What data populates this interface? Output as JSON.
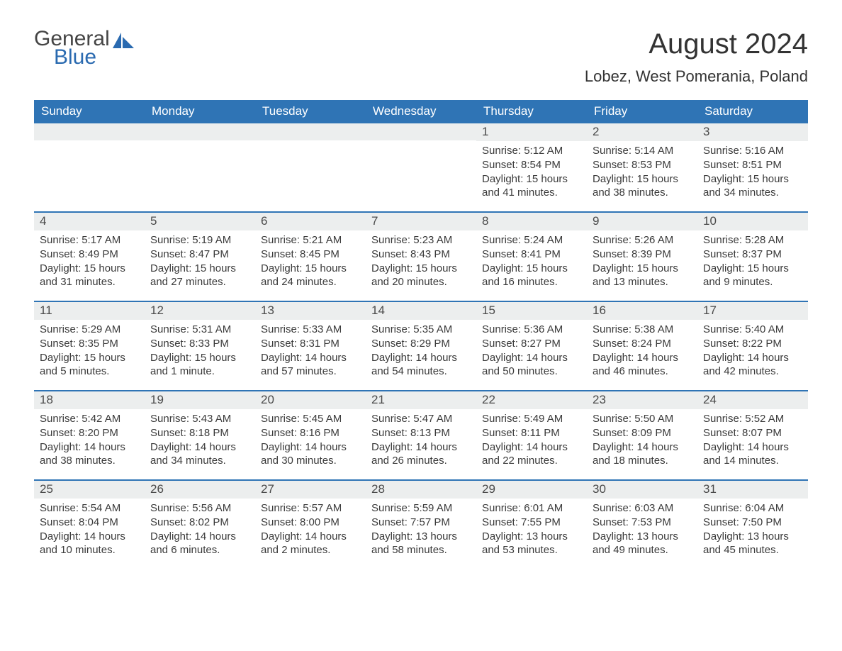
{
  "brand": {
    "word1": "General",
    "word2": "Blue"
  },
  "title": "August 2024",
  "location": "Lobez, West Pomerania, Poland",
  "colors": {
    "header_bg": "#2f74b5",
    "header_text": "#ffffff",
    "daynum_bg": "#eceeee",
    "text": "#3a3a3a",
    "rule": "#2f74b5",
    "logo_blue": "#2a6ab0",
    "page_bg": "#ffffff"
  },
  "layout": {
    "columns": 7,
    "font_family": "Arial",
    "title_fontsize": 40,
    "location_fontsize": 22,
    "dayhead_fontsize": 17,
    "cell_fontsize": 15
  },
  "day_headers": [
    "Sunday",
    "Monday",
    "Tuesday",
    "Wednesday",
    "Thursday",
    "Friday",
    "Saturday"
  ],
  "weeks": [
    [
      {
        "n": "",
        "sr": "",
        "ss": "",
        "dl": ""
      },
      {
        "n": "",
        "sr": "",
        "ss": "",
        "dl": ""
      },
      {
        "n": "",
        "sr": "",
        "ss": "",
        "dl": ""
      },
      {
        "n": "",
        "sr": "",
        "ss": "",
        "dl": ""
      },
      {
        "n": "1",
        "sr": "5:12 AM",
        "ss": "8:54 PM",
        "dl": "15 hours and 41 minutes."
      },
      {
        "n": "2",
        "sr": "5:14 AM",
        "ss": "8:53 PM",
        "dl": "15 hours and 38 minutes."
      },
      {
        "n": "3",
        "sr": "5:16 AM",
        "ss": "8:51 PM",
        "dl": "15 hours and 34 minutes."
      }
    ],
    [
      {
        "n": "4",
        "sr": "5:17 AM",
        "ss": "8:49 PM",
        "dl": "15 hours and 31 minutes."
      },
      {
        "n": "5",
        "sr": "5:19 AM",
        "ss": "8:47 PM",
        "dl": "15 hours and 27 minutes."
      },
      {
        "n": "6",
        "sr": "5:21 AM",
        "ss": "8:45 PM",
        "dl": "15 hours and 24 minutes."
      },
      {
        "n": "7",
        "sr": "5:23 AM",
        "ss": "8:43 PM",
        "dl": "15 hours and 20 minutes."
      },
      {
        "n": "8",
        "sr": "5:24 AM",
        "ss": "8:41 PM",
        "dl": "15 hours and 16 minutes."
      },
      {
        "n": "9",
        "sr": "5:26 AM",
        "ss": "8:39 PM",
        "dl": "15 hours and 13 minutes."
      },
      {
        "n": "10",
        "sr": "5:28 AM",
        "ss": "8:37 PM",
        "dl": "15 hours and 9 minutes."
      }
    ],
    [
      {
        "n": "11",
        "sr": "5:29 AM",
        "ss": "8:35 PM",
        "dl": "15 hours and 5 minutes."
      },
      {
        "n": "12",
        "sr": "5:31 AM",
        "ss": "8:33 PM",
        "dl": "15 hours and 1 minute."
      },
      {
        "n": "13",
        "sr": "5:33 AM",
        "ss": "8:31 PM",
        "dl": "14 hours and 57 minutes."
      },
      {
        "n": "14",
        "sr": "5:35 AM",
        "ss": "8:29 PM",
        "dl": "14 hours and 54 minutes."
      },
      {
        "n": "15",
        "sr": "5:36 AM",
        "ss": "8:27 PM",
        "dl": "14 hours and 50 minutes."
      },
      {
        "n": "16",
        "sr": "5:38 AM",
        "ss": "8:24 PM",
        "dl": "14 hours and 46 minutes."
      },
      {
        "n": "17",
        "sr": "5:40 AM",
        "ss": "8:22 PM",
        "dl": "14 hours and 42 minutes."
      }
    ],
    [
      {
        "n": "18",
        "sr": "5:42 AM",
        "ss": "8:20 PM",
        "dl": "14 hours and 38 minutes."
      },
      {
        "n": "19",
        "sr": "5:43 AM",
        "ss": "8:18 PM",
        "dl": "14 hours and 34 minutes."
      },
      {
        "n": "20",
        "sr": "5:45 AM",
        "ss": "8:16 PM",
        "dl": "14 hours and 30 minutes."
      },
      {
        "n": "21",
        "sr": "5:47 AM",
        "ss": "8:13 PM",
        "dl": "14 hours and 26 minutes."
      },
      {
        "n": "22",
        "sr": "5:49 AM",
        "ss": "8:11 PM",
        "dl": "14 hours and 22 minutes."
      },
      {
        "n": "23",
        "sr": "5:50 AM",
        "ss": "8:09 PM",
        "dl": "14 hours and 18 minutes."
      },
      {
        "n": "24",
        "sr": "5:52 AM",
        "ss": "8:07 PM",
        "dl": "14 hours and 14 minutes."
      }
    ],
    [
      {
        "n": "25",
        "sr": "5:54 AM",
        "ss": "8:04 PM",
        "dl": "14 hours and 10 minutes."
      },
      {
        "n": "26",
        "sr": "5:56 AM",
        "ss": "8:02 PM",
        "dl": "14 hours and 6 minutes."
      },
      {
        "n": "27",
        "sr": "5:57 AM",
        "ss": "8:00 PM",
        "dl": "14 hours and 2 minutes."
      },
      {
        "n": "28",
        "sr": "5:59 AM",
        "ss": "7:57 PM",
        "dl": "13 hours and 58 minutes."
      },
      {
        "n": "29",
        "sr": "6:01 AM",
        "ss": "7:55 PM",
        "dl": "13 hours and 53 minutes."
      },
      {
        "n": "30",
        "sr": "6:03 AM",
        "ss": "7:53 PM",
        "dl": "13 hours and 49 minutes."
      },
      {
        "n": "31",
        "sr": "6:04 AM",
        "ss": "7:50 PM",
        "dl": "13 hours and 45 minutes."
      }
    ]
  ],
  "labels": {
    "sunrise": "Sunrise:",
    "sunset": "Sunset:",
    "daylight": "Daylight:"
  }
}
